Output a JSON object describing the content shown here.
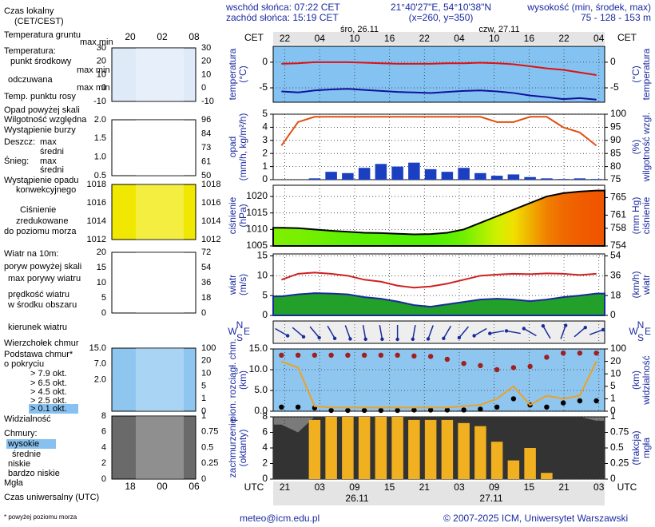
{
  "header": {
    "sunrise": "wschód słońca: 07:22 CET",
    "sunset": "zachód słońca: 15:19 CET",
    "coords": "21°40'27\"E, 54°10'38\"N",
    "grid_point": "(x=260, y=350)",
    "height_title": "wysokość (min, środek, max)",
    "height_values": "75 - 128 - 153 m"
  },
  "time_axis": {
    "local_label": "CET",
    "utc_label": "UTC",
    "top_dates": [
      "śro, 26.11",
      "czw, 27.11"
    ],
    "top_hours": [
      "22",
      "04",
      "10",
      "16",
      "22",
      "04",
      "10",
      "16",
      "22",
      "04"
    ],
    "bottom_hours": [
      "21",
      "03",
      "09",
      "15",
      "21",
      "03",
      "09",
      "15",
      "21",
      "03"
    ],
    "bottom_dates": [
      "26.11",
      "27.11"
    ]
  },
  "mini": {
    "top_hours": [
      "20",
      "02",
      "08"
    ],
    "bottom_hours": [
      "18",
      "00",
      "06"
    ],
    "panels": [
      {
        "left": [
          "30",
          "20",
          "10",
          "0",
          "-10"
        ],
        "right": [
          "30",
          "20",
          "10",
          "0",
          "-10"
        ],
        "background": "#dfeaf8"
      },
      {
        "left": [
          "2.0",
          "1.5",
          "1.0",
          "0.5"
        ],
        "right": [
          "96",
          "84",
          "73",
          "61",
          "50"
        ],
        "background": "#ffffff"
      },
      {
        "left": [
          "1018",
          "1016",
          "1014",
          "1012"
        ],
        "right": [
          "1018",
          "1016",
          "1014",
          "1012"
        ],
        "background": "#f0e800"
      },
      {
        "left": [
          "20",
          "15",
          "10",
          "5",
          "0"
        ],
        "right": [
          "72",
          "54",
          "36",
          "18",
          "0"
        ],
        "background": "#ffffff"
      },
      {
        "left": [
          "15.0",
          "7.0",
          "2.0"
        ],
        "right": [
          "100",
          "20",
          "10",
          "5",
          "1",
          "0"
        ],
        "background": "#8ec6f0"
      },
      {
        "left": [
          "8",
          "6",
          "4",
          "2",
          "0"
        ],
        "right": [
          "1",
          "0.75",
          "0.5",
          "0.25",
          "0"
        ],
        "background": "#6a6a6a"
      }
    ]
  },
  "panels": [
    {
      "title_left": [
        "temperatura",
        "(°C)"
      ],
      "title_right": [
        "(°C)",
        "temperatura"
      ],
      "ylim": [
        -7.8,
        3.1
      ],
      "yticks": [
        0,
        -5
      ],
      "y2lim": [
        -7.8,
        3.1
      ],
      "y2ticks": [
        0,
        -5
      ],
      "background": "#84c2f2",
      "series": [
        {
          "type": "line",
          "color": "#e01010",
          "values": [
            -0.3,
            -0.2,
            0,
            0,
            0,
            -0.1,
            -0.2,
            -0.3,
            -0.3,
            -0.3,
            -0.2,
            -0.2,
            -0.1,
            -0.2,
            -0.4,
            -0.8,
            -1.2,
            -1.5,
            -2,
            -2.5
          ]
        },
        {
          "type": "line",
          "color": "#10109a",
          "values": [
            -5.7,
            -5.9,
            -5.5,
            -5.3,
            -5.2,
            -5.4,
            -5.6,
            -5.8,
            -5.9,
            -6,
            -5.8,
            -5.6,
            -5.5,
            -5.7,
            -6,
            -6.5,
            -6.8,
            -7.2,
            -7,
            -7.3
          ]
        }
      ]
    },
    {
      "title_left": [
        "opad",
        "(mm/h, kg/m²/h)"
      ],
      "title_right": [
        "(%)",
        "wilgotność wzgl."
      ],
      "ylim": [
        0,
        5
      ],
      "yticks": [
        5,
        4,
        3,
        2,
        1,
        0
      ],
      "y2lim": [
        75,
        100
      ],
      "y2ticks": [
        100,
        95,
        90,
        85,
        80,
        75
      ],
      "background": "#ffffff",
      "series": [
        {
          "type": "bar",
          "color": "#1a3fc0",
          "values": [
            0,
            0,
            0.1,
            0.6,
            0.5,
            0.9,
            1.2,
            1.0,
            1.3,
            0.8,
            0.6,
            0.9,
            0.5,
            0.3,
            0.4,
            0.2,
            0.1,
            0.05,
            0.1,
            0.05
          ]
        },
        {
          "type": "line",
          "color": "#e05010",
          "axis": "y2",
          "values": [
            88,
            97,
            99,
            99,
            99,
            99,
            99,
            99,
            99,
            99,
            99,
            99,
            99,
            97,
            97,
            99,
            99,
            95,
            93,
            88
          ]
        }
      ]
    },
    {
      "title_left": [
        "ciśnienie",
        "(hPa)"
      ],
      "title_right": [
        "(mm Hg)",
        "ciśnienie"
      ],
      "ylim": [
        1005,
        1023.4
      ],
      "yticks": [
        1020,
        1015,
        1010,
        1005
      ],
      "y2lim": [
        754,
        767.8
      ],
      "y2ticks": [
        765,
        761,
        758,
        754
      ],
      "background": "#ffffff",
      "series": [
        {
          "type": "area",
          "color": "#000000",
          "values": [
            1010.5,
            1010.4,
            1010,
            1009.6,
            1009.3,
            1009,
            1008.9,
            1008.7,
            1008.5,
            1008.6,
            1009,
            1010,
            1012,
            1014,
            1016,
            1018,
            1020,
            1021,
            1021.5,
            1021.8
          ]
        }
      ]
    },
    {
      "title_left": [
        "wiatr",
        "(m/s)"
      ],
      "title_right": [
        "(km/h)",
        "wiatr"
      ],
      "ylim": [
        0,
        15.5
      ],
      "yticks": [
        15,
        10,
        5,
        0
      ],
      "y2lim": [
        0,
        55.8
      ],
      "y2ticks": [
        54,
        36,
        18,
        0
      ],
      "background": "#ffffff",
      "series": [
        {
          "type": "line",
          "color": "#d02020",
          "values": [
            9,
            10.5,
            10.8,
            10.5,
            10,
            9,
            8.5,
            7.5,
            7,
            7.3,
            8,
            9,
            10,
            10.3,
            10.5,
            10.4,
            10.6,
            10.5,
            10.2,
            10.5
          ]
        },
        {
          "type": "area",
          "color": "#1a2a9a",
          "values": [
            4.8,
            5.3,
            5.6,
            5.5,
            5.3,
            4.6,
            4.2,
            3.5,
            2.6,
            2.2,
            2.8,
            3.4,
            4,
            4.2,
            4,
            3.6,
            4,
            4.6,
            5,
            5.5
          ]
        }
      ]
    },
    {
      "compass": [
        "N",
        "W",
        "E",
        "S"
      ],
      "background": "#eeeeee",
      "series": [
        {
          "type": "arrows",
          "color": "#1a2a9a",
          "values": [
            300,
            310,
            320,
            330,
            340,
            350,
            350,
            0,
            10,
            20,
            30,
            40,
            60,
            80,
            100,
            120,
            150,
            200,
            230,
            250
          ]
        }
      ]
    },
    {
      "title_left": [
        "pion. rozciągł. chm.",
        "(km)"
      ],
      "title_right": [
        "(km)",
        "widzialność"
      ],
      "ylim": [
        0,
        15
      ],
      "yticks": [
        {
          "value": 15,
          "label": "15.0"
        },
        {
          "value": 10,
          "label": "10.0"
        },
        {
          "value": 5,
          "label": "5.0"
        },
        {
          "value": 0,
          "label": "0.0"
        }
      ],
      "y2ticks": [
        100,
        20,
        10,
        5,
        1,
        0
      ],
      "y2scale": "piecewise",
      "background": "#8ec6f0",
      "series": [
        {
          "type": "dots",
          "color": "#a02020",
          "values": [
            13.5,
            13.5,
            13.5,
            13.5,
            13.5,
            13.5,
            13.5,
            13.5,
            13.3,
            13.2,
            12.5,
            11.5,
            11,
            10,
            10.5,
            10.8,
            13,
            14,
            14,
            14
          ]
        },
        {
          "type": "dots",
          "color": "#000000",
          "values": [
            1,
            1,
            0.8,
            0.2,
            0.2,
            0.2,
            0.2,
            0.2,
            0.3,
            0.3,
            0.3,
            0.3,
            0.5,
            1,
            3,
            1.5,
            1,
            2,
            2.5,
            2.5
          ]
        },
        {
          "type": "line",
          "color": "#f0a020",
          "axis": "y2",
          "values": [
            20,
            15,
            0.4,
            0.3,
            0.3,
            0.3,
            0.3,
            0.3,
            0.3,
            0.3,
            0.3,
            0.4,
            0.5,
            1,
            5,
            0.5,
            2,
            1,
            2,
            20
          ]
        }
      ]
    },
    {
      "title_left": [
        "zachmurzenie",
        "(oktanty)"
      ],
      "title_right": [
        "(frakcja)",
        "mgła"
      ],
      "ylim": [
        0,
        8
      ],
      "yticks": [
        8,
        6,
        4,
        2,
        0
      ],
      "y2lim": [
        0,
        1
      ],
      "y2ticks": [
        1,
        0.75,
        0.5,
        0.25,
        0
      ],
      "background": "#7a7a7a",
      "series": [
        {
          "type": "area",
          "color": "#333333",
          "values": [
            7,
            6,
            8,
            8,
            8,
            8,
            8,
            8,
            8,
            8,
            8,
            8,
            8,
            8,
            8,
            8,
            8,
            8,
            8,
            7.5
          ]
        },
        {
          "type": "bar",
          "color": "#f0b020",
          "axis": "y2",
          "values": [
            0,
            0,
            0.95,
            1,
            1,
            1,
            1,
            1,
            0.95,
            0.95,
            0.95,
            0.9,
            0.85,
            0.6,
            0.3,
            0.5,
            0.1,
            0,
            0,
            0
          ]
        }
      ]
    }
  ],
  "legend": [
    {
      "text": "Czas lokalny",
      "color": "#000000"
    },
    {
      "text": "(CET/CEST)",
      "color": "#000000"
    },
    {
      "text": "Temperatura gruntu",
      "color": "#d00000"
    },
    {
      "text": "max min",
      "color": "#aaaaaa"
    },
    {
      "text": "Temperatura:",
      "color": "#000000"
    },
    {
      "text": "punkt środkowy",
      "color": "#d00000"
    },
    {
      "text": "max min",
      "color": "#bbbbbb"
    },
    {
      "text": "odczuwana",
      "color": "#0000c0"
    },
    {
      "text": "max min",
      "color": "#bbbbbb"
    },
    {
      "text": "Temp. punktu rosy",
      "color": "#3060d0"
    },
    {
      "text": "Opad powyżej skali",
      "color": "#d00000"
    },
    {
      "text": "Wilgotność względna",
      "color": "#d04000"
    },
    {
      "text": "Wystąpienie burzy",
      "color": "#000000"
    },
    {
      "text": "Deszcz:",
      "color": "#00a000"
    },
    {
      "text": "max",
      "color": "#00a000"
    },
    {
      "text": "średni",
      "color": "#00a000"
    },
    {
      "text": "Śnieg:",
      "color": "#0000c0"
    },
    {
      "text": "max",
      "color": "#0000c0"
    },
    {
      "text": "średni",
      "color": "#0000c0"
    },
    {
      "text": "Wystąpienie opadu",
      "color": "#d00000"
    },
    {
      "text": "konwekcyjnego",
      "color": "#d00000"
    },
    {
      "text": "Ciśnienie",
      "color": "#000000"
    },
    {
      "text": "zredukowane",
      "color": "#000000"
    },
    {
      "text": "do poziomu morza",
      "color": "#000000"
    },
    {
      "text": "Wiatr na 10m:",
      "color": "#000000"
    },
    {
      "text": "poryw powyżej skali",
      "color": "#d00000"
    },
    {
      "text": "max porywy wiatru",
      "color": "#d00000"
    },
    {
      "text": "prędkość wiatru",
      "color": "#0000c0"
    },
    {
      "text": "w środku obszaru",
      "color": "#0000c0"
    },
    {
      "text": "kierunek wiatru",
      "color": "#0000c0"
    },
    {
      "text": "Wierzchołek chmur",
      "color": "#000000"
    },
    {
      "text": "Podstawa chmur*",
      "color": "#000000"
    },
    {
      "text": "o pokryciu",
      "color": "#000000"
    },
    {
      "text": "> 7.9 okt.",
      "color": "#000000"
    },
    {
      "text": "> 6.5 okt.",
      "color": "#333333"
    },
    {
      "text": "> 4.5 okt.",
      "color": "#777777"
    },
    {
      "text": "> 2.5 okt.",
      "color": "#bbbbbb"
    },
    {
      "text": "> 0.1 okt.",
      "color": "#ffffff"
    },
    {
      "text": "Widzialność",
      "color": "#e08000"
    },
    {
      "text": "Chmury:",
      "color": "#000000"
    },
    {
      "text": "wysokie",
      "color": "#ffffff"
    },
    {
      "text": "średnie",
      "color": "#bbbbbb"
    },
    {
      "text": "niskie",
      "color": "#000000"
    },
    {
      "text": "bardzo niskie",
      "color": "#000000"
    },
    {
      "text": "Mgła",
      "color": "#e08000"
    },
    {
      "text": "Czas uniwersalny (UTC)",
      "color": "#000000"
    },
    {
      "text": "* powyżej poziomu morza",
      "color": "#000000"
    }
  ],
  "footer": {
    "email": "meteo@icm.edu.pl",
    "copyright": "© 2007-2025 ICM, Uniwersytet Warszawski"
  }
}
